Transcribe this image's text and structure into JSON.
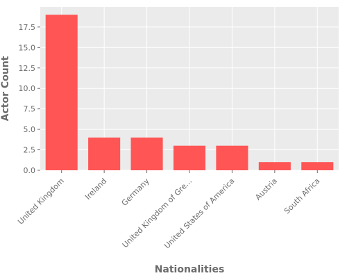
{
  "chart_data": {
    "type": "bar",
    "title": "",
    "xlabel": "Nationalities",
    "ylabel": "Actor Count",
    "categories": [
      "United Kingdom",
      "Ireland",
      "Germany",
      "United Kingdom of Gre...",
      "United States of America",
      "Austria",
      "South Africa"
    ],
    "values": [
      19,
      4,
      4,
      3,
      3,
      1,
      1
    ],
    "ylim": [
      0,
      19.95
    ],
    "yticks": [
      "0.0",
      "2.5",
      "5.0",
      "7.5",
      "10.0",
      "12.5",
      "15.0",
      "17.5"
    ],
    "grid": true,
    "colors": {
      "bar": "#ff5555",
      "plot_background": "#ebebeb",
      "grid": "#ffffff",
      "text": "#6b6b6b"
    }
  }
}
